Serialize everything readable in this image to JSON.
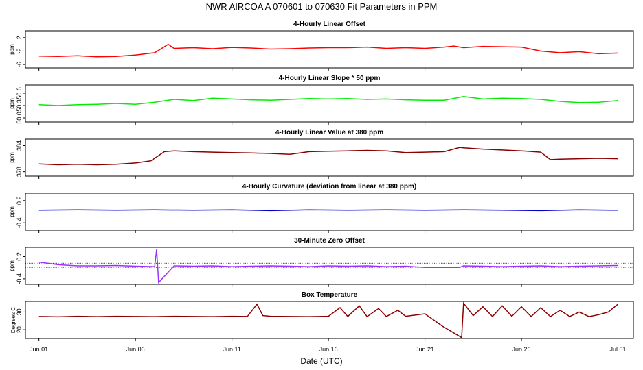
{
  "figure": {
    "title": "NWR   AIRCOA A   070601 to 070630   Fit Parameters in PPM",
    "xlabel": "Date (UTC)"
  },
  "chart_data": [
    {
      "type": "line",
      "title": "4-Hourly Linear Offset",
      "ylabel": "ppm",
      "yticks": [
        "2",
        "-2",
        "-6"
      ],
      "tick_values": [
        2,
        -2,
        -6
      ],
      "ylim": [
        -7,
        4
      ],
      "color": "#ff0000",
      "x_days": [
        1,
        2,
        3,
        4,
        5,
        6,
        7,
        7.7,
        8,
        9,
        10,
        11,
        12,
        13,
        14,
        15,
        16,
        17,
        18,
        19,
        20,
        21,
        22,
        22.5,
        23,
        24,
        25,
        26,
        27,
        28,
        29,
        30,
        31
      ],
      "values": [
        -3.5,
        -3.6,
        -3.4,
        -3.7,
        -3.6,
        -3.2,
        -2.5,
        0,
        -1.2,
        -1.0,
        -1.3,
        -0.9,
        -1.1,
        -1.4,
        -1.3,
        -1.1,
        -1.0,
        -1.0,
        -0.8,
        -1.2,
        -1.0,
        -1.2,
        -0.8,
        -0.5,
        -1.0,
        -0.6,
        -0.7,
        -0.8,
        -2.0,
        -2.5,
        -2.2,
        -2.8,
        -2.6
      ]
    },
    {
      "type": "line",
      "title": "4-Hourly Linear Slope * 50 ppm",
      "ylabel": "ppm",
      "yticks": [
        "50.6",
        "50.3",
        "50.0"
      ],
      "tick_values": [
        50.6,
        50.3,
        50.0
      ],
      "ylim": [
        49.9,
        50.8
      ],
      "color": "#00ee00",
      "x_days": [
        1,
        2,
        3,
        4,
        5,
        6,
        7,
        8,
        9,
        10,
        11,
        12,
        13,
        14,
        15,
        16,
        17,
        18,
        19,
        20,
        21,
        22,
        23,
        24,
        25,
        26,
        27,
        28,
        29,
        30,
        31
      ],
      "values": [
        50.32,
        50.3,
        50.32,
        50.33,
        50.35,
        50.33,
        50.38,
        50.45,
        50.42,
        50.48,
        50.46,
        50.44,
        50.43,
        50.45,
        50.47,
        50.46,
        50.47,
        50.45,
        50.46,
        50.44,
        50.43,
        50.43,
        50.52,
        50.46,
        50.48,
        50.47,
        50.45,
        50.4,
        50.37,
        50.38,
        50.42
      ]
    },
    {
      "type": "line",
      "title": "4-Hourly Linear Value at 380 ppm",
      "ylabel": "ppm",
      "yticks": [
        "384",
        "378"
      ],
      "tick_values": [
        384,
        378
      ],
      "ylim": [
        377,
        385.5
      ],
      "color": "#8b0000",
      "x_days": [
        1,
        2,
        3,
        4,
        5,
        6,
        6.8,
        7.5,
        8,
        9,
        10,
        11,
        12,
        13,
        14,
        15,
        16,
        17,
        18,
        19,
        20,
        21,
        22,
        22.8,
        23,
        24,
        25,
        26,
        27,
        27.5,
        28,
        29,
        30,
        31
      ],
      "values": [
        379.8,
        379.6,
        379.7,
        379.6,
        379.7,
        380.0,
        380.5,
        382.6,
        382.8,
        382.6,
        382.5,
        382.4,
        382.3,
        382.2,
        382.0,
        382.6,
        382.7,
        382.8,
        382.9,
        382.8,
        382.4,
        382.5,
        382.6,
        383.6,
        383.5,
        383.2,
        383.0,
        382.8,
        382.5,
        380.8,
        380.9,
        381.0,
        381.1,
        381.0
      ]
    },
    {
      "type": "line",
      "title": "4-Hourly Curvature (deviation from linear at 380 ppm)",
      "ylabel": "ppm",
      "yticks": [
        "0.2",
        "-0.4"
      ],
      "tick_values": [
        0.2,
        -0.4
      ],
      "ylim": [
        -0.6,
        0.4
      ],
      "color": "#0000cd",
      "x_days": [
        1,
        3,
        5,
        7,
        9,
        11,
        13,
        15,
        17,
        19,
        21,
        23,
        25,
        27,
        29,
        31
      ],
      "values": [
        -0.06,
        -0.05,
        -0.06,
        -0.05,
        -0.06,
        -0.05,
        -0.07,
        -0.05,
        -0.06,
        -0.05,
        -0.06,
        -0.05,
        -0.06,
        -0.07,
        -0.05,
        -0.06
      ]
    },
    {
      "type": "line",
      "title": "30-Minute Zero Offset",
      "ylabel": "ppm",
      "yticks": [
        "0.2",
        "-0.4"
      ],
      "tick_values": [
        0.2,
        -0.4
      ],
      "ylim": [
        -0.55,
        0.45
      ],
      "reference_lines": [
        0.02,
        -0.09
      ],
      "color": "#9b30ff",
      "x_days": [
        1,
        2,
        3,
        4,
        5,
        6,
        7,
        7.1,
        7.2,
        8,
        9,
        10,
        11,
        12,
        13,
        14,
        15,
        16,
        17,
        18,
        19,
        20,
        21,
        22,
        22.8,
        23,
        24,
        25,
        26,
        27,
        28,
        29,
        30,
        31
      ],
      "values": [
        0.05,
        -0.02,
        -0.05,
        -0.05,
        -0.04,
        -0.06,
        -0.07,
        0.4,
        -0.5,
        -0.05,
        -0.06,
        -0.05,
        -0.07,
        -0.06,
        -0.05,
        -0.06,
        -0.07,
        -0.05,
        -0.06,
        -0.05,
        -0.07,
        -0.06,
        -0.09,
        -0.09,
        -0.09,
        -0.05,
        -0.06,
        -0.07,
        -0.06,
        -0.05,
        -0.07,
        -0.06,
        -0.05,
        -0.04
      ]
    },
    {
      "type": "line",
      "title": "Box Temperature",
      "ylabel": "Degrees C",
      "yticks": [
        "30",
        "20"
      ],
      "tick_values": [
        30,
        20
      ],
      "ylim": [
        15,
        36
      ],
      "color": "#8b0000",
      "x_days": [
        1,
        2,
        3,
        4,
        5,
        6,
        7,
        8,
        9,
        10,
        11,
        11.8,
        12.3,
        12.6,
        13,
        14,
        15,
        16,
        16.6,
        17,
        17.6,
        18,
        18.6,
        19,
        19.6,
        20,
        21,
        21.9,
        22.9,
        23,
        23.5,
        24,
        24.5,
        25,
        25.5,
        26,
        26.5,
        27,
        27.5,
        28,
        28.5,
        29,
        29.5,
        30,
        30.5,
        31
      ],
      "values": [
        27.5,
        27.3,
        27.6,
        27.4,
        27.6,
        27.5,
        27.4,
        27.6,
        27.5,
        27.4,
        27.6,
        27.5,
        34.5,
        28.0,
        27.6,
        27.5,
        27.4,
        27.6,
        32.5,
        27.5,
        33.5,
        27.4,
        32.0,
        27.5,
        31.0,
        27.6,
        29.0,
        22.0,
        15.5,
        35.0,
        28.0,
        33.0,
        27.5,
        33.5,
        27.6,
        33.0,
        27.5,
        32.5,
        27.4,
        31.0,
        27.5,
        30.0,
        27.4,
        28.5,
        30.0,
        34.5
      ]
    }
  ],
  "x_axis": {
    "ticks": [
      "Jun 01",
      "Jun 06",
      "Jun 11",
      "Jun 16",
      "Jun 21",
      "Jun 26",
      "Jul 01"
    ],
    "tick_days": [
      1,
      6,
      11,
      16,
      21,
      26,
      31
    ],
    "xlim": [
      0.3,
      31.8
    ]
  }
}
